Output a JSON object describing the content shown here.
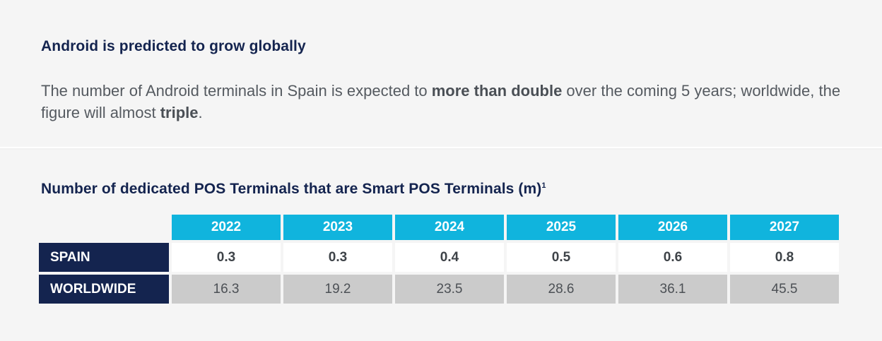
{
  "intro": {
    "title": "Android is predicted to grow globally",
    "text_part1": "The number of Android terminals in Spain is expected to ",
    "text_bold1": "more than double",
    "text_part2": " over the coming 5 years; worldwide, the figure will almost ",
    "text_bold2": "triple",
    "text_part3": "."
  },
  "table": {
    "title": "Number of dedicated POS Terminals that are Smart POS Terminals (m)",
    "title_footnote": "1",
    "years": [
      "2022",
      "2023",
      "2024",
      "2025",
      "2026",
      "2027"
    ],
    "rows": [
      {
        "label": "SPAIN",
        "values": [
          "0.3",
          "0.3",
          "0.4",
          "0.5",
          "0.6",
          "0.8"
        ]
      },
      {
        "label": "WORLDWIDE",
        "values": [
          "16.3",
          "19.2",
          "23.5",
          "28.6",
          "36.1",
          "45.5"
        ]
      }
    ]
  },
  "colors": {
    "navy": "#14244f",
    "cyan": "#10b4dd",
    "grey_cell": "#cbcbcb"
  }
}
